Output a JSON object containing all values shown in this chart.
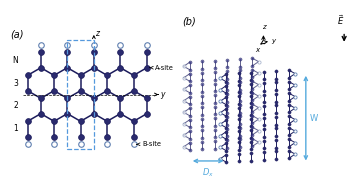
{
  "fig_width": 3.56,
  "fig_height": 1.89,
  "dpi": 100,
  "bg_color": "#ffffff",
  "bond_color": "#1c1c5c",
  "atom_dark_face": "#2a2a6e",
  "atom_dark_edge": "#1c1c5c",
  "atom_light_face": "#ffffff",
  "atom_light_edge": "#6080b0",
  "dashed_color": "#5599dd",
  "arrow_color": "#55aadd",
  "text_color": "#000000",
  "panel_a": "(a)",
  "panel_b": "(b)",
  "label_asite": "A-site",
  "label_bsite": "B-site",
  "label_y": "y",
  "label_z": "z",
  "label_x": "x",
  "label_N": "N",
  "row_labels": [
    "1",
    "2",
    "3"
  ],
  "label_Dx": "D",
  "label_W": "W",
  "label_E": "E"
}
